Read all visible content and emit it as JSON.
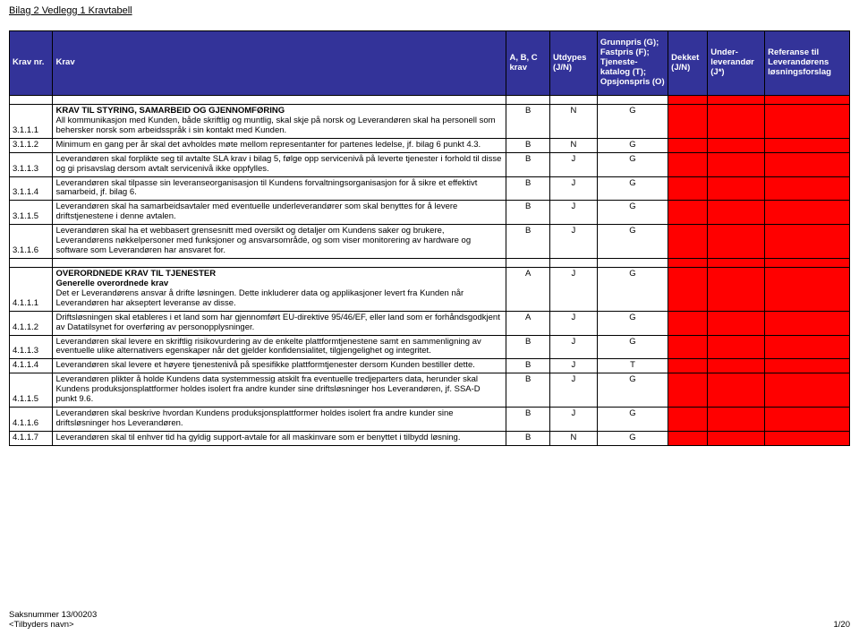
{
  "doc_title": "Bilag 2 Vedlegg 1 Kravtabell",
  "headers": {
    "nr": "Krav nr.",
    "krav": "Krav",
    "abc": "A, B, C krav",
    "utdypes": "Utdypes (J/N)",
    "gfto": "Grunnpris (G); Fastpris (F); Tjeneste-katalog (T); Opsjonspris (O)",
    "dekket": "Dekket (J/N)",
    "underlev": "Under-leverandør (J*)",
    "referanse": "Referanse til Leverandørens løsningsforslag"
  },
  "section1_title": "KRAV TIL STYRING, SAMARBEID OG GJENNOMFØRING",
  "section2_title": "OVERORDNEDE KRAV TIL TJENESTER",
  "section2_sub": "Generelle overordnede krav",
  "rows1": [
    {
      "nr": "3.1.1.1",
      "text": "All kommunikasjon med Kunden, både skriftlig og muntlig, skal skje på norsk og Leverandøren skal ha personell som behersker norsk som arbeidsspråk i sin kontakt med Kunden.",
      "abc": "B",
      "ut": "N",
      "g": "G"
    },
    {
      "nr": "3.1.1.2",
      "text": "Minimum en gang per år skal det avholdes møte mellom representanter for partenes ledelse, jf. bilag 6 punkt 4.3.",
      "abc": "B",
      "ut": "N",
      "g": "G"
    },
    {
      "nr": "3.1.1.3",
      "text": "Leverandøren skal forplikte seg til avtalte SLA krav i bilag 5, følge opp servicenivå på leverte tjenester i forhold til disse og gi prisavslag dersom avtalt servicenivå ikke oppfylles.",
      "abc": "B",
      "ut": "J",
      "g": "G"
    },
    {
      "nr": "3.1.1.4",
      "text": "Leverandøren skal tilpasse sin leveranseorganisasjon til Kundens forvaltningsorganisasjon for å sikre et effektivt samarbeid, jf. bilag 6.",
      "abc": "B",
      "ut": "J",
      "g": "G"
    },
    {
      "nr": "3.1.1.5",
      "text": "Leverandøren skal ha samarbeidsavtaler med eventuelle underleverandører som skal benyttes for å levere driftstjenestene i denne avtalen.",
      "abc": "B",
      "ut": "J",
      "g": "G"
    },
    {
      "nr": "3.1.1.6",
      "text": "Leverandøren skal ha et webbasert grensesnitt med oversikt og detaljer om Kundens saker og brukere, Leverandørens nøkkelpersoner med funksjoner og ansvarsområde, og som viser monitorering av hardware og software som Leverandøren har ansvaret for.",
      "abc": "B",
      "ut": "J",
      "g": "G"
    }
  ],
  "rows2": [
    {
      "nr": "4.1.1.1",
      "text": "Det er Leverandørens ansvar å drifte løsningen. Dette inkluderer data og applikasjoner levert fra Kunden når Leverandøren har akseptert leveranse av disse.",
      "abc": "A",
      "ut": "J",
      "g": "G"
    },
    {
      "nr": "4.1.1.2",
      "text": "Driftsløsningen skal etableres i et land som har gjennomført EU-direktive 95/46/EF, eller land som er forhåndsgodkjent av Datatilsynet for overføring av personopplysninger.",
      "abc": "A",
      "ut": "J",
      "g": "G"
    },
    {
      "nr": "4.1.1.3",
      "text": "Leverandøren skal levere en skriftlig risikovurdering av de enkelte plattformtjenestene samt en sammenligning av eventuelle ulike alternativers egenskaper når det gjelder konfidensialitet, tilgjengelighet og integritet.",
      "abc": "B",
      "ut": "J",
      "g": "G"
    },
    {
      "nr": "4.1.1.4",
      "text": "Leverandøren skal levere et høyere tjenestenivå på spesifikke plattformtjenester dersom Kunden bestiller dette.",
      "abc": "B",
      "ut": "J",
      "g": "T"
    },
    {
      "nr": "4.1.1.5",
      "text": "Leverandøren plikter å holde Kundens data systemmessig atskilt fra eventuelle tredjeparters data, herunder skal Kundens produksjonsplattformer holdes isolert fra andre kunder sine driftsløsninger hos Leverandøren, jf. SSA-D punkt 9.6.",
      "abc": "B",
      "ut": "J",
      "g": "G"
    },
    {
      "nr": "4.1.1.6",
      "text": "Leverandøren skal beskrive hvordan Kundens produksjonsplattformer holdes isolert fra andre kunder sine driftsløsninger hos Leverandøren.",
      "abc": "B",
      "ut": "J",
      "g": "G"
    },
    {
      "nr": "4.1.1.7",
      "text": "Leverandøren skal til enhver tid ha gyldig support-avtale for all maskinvare som er benyttet i tilbydd løsning.",
      "abc": "B",
      "ut": "N",
      "g": "G"
    }
  ],
  "footer": {
    "saksnr": "Saksnummer 13/00203",
    "tilbyder": "<Tilbyders navn>",
    "page": "1/20"
  },
  "colors": {
    "header_bg": "#333399",
    "header_fg": "#ffffff",
    "red": "#ff0000"
  }
}
